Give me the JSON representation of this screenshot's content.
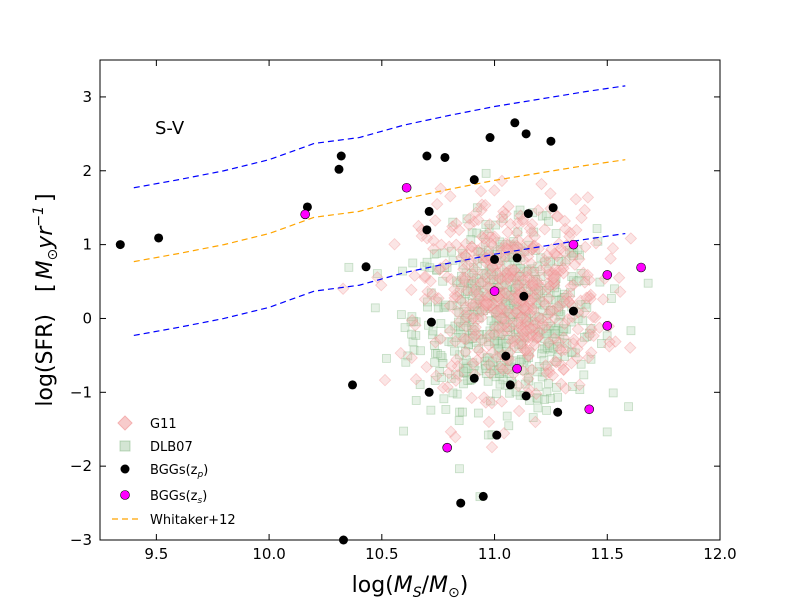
{
  "chart_data": {
    "type": "scatter",
    "panel_label": "S-V",
    "xlabel": {
      "prefix": "log(",
      "M": "M",
      "sub_s": "S",
      "slash": "/",
      "M2": "M",
      "sub_sun": "⊙",
      "suffix": ")"
    },
    "ylabel": {
      "text": "log(SFR)",
      "unit_open": "[",
      "M": "M",
      "sub_sun": "⊙",
      "yr": "yr",
      "exp": "−1",
      "unit_close": "]"
    },
    "xlim": [
      9.25,
      12.0
    ],
    "ylim": [
      -3,
      3.5
    ],
    "xticks": [
      9.5,
      10.0,
      10.5,
      11.0,
      11.5,
      12.0
    ],
    "xtick_labels": [
      "9.5",
      "10.0",
      "10.5",
      "11.0",
      "11.5",
      "12.0"
    ],
    "yticks": [
      -3,
      -2,
      -1,
      0,
      1,
      2,
      3
    ],
    "ytick_labels": [
      "−3",
      "−2",
      "−1",
      "0",
      "1",
      "2",
      "3"
    ],
    "legend": [
      {
        "label": "G11",
        "marker": "diamond",
        "color": "#f4b5b5"
      },
      {
        "label": "DLB07",
        "marker": "square",
        "color": "#c8dfc8"
      },
      {
        "label": "BGGs(z",
        "sub": "p",
        "close": ")",
        "marker": "circle",
        "color": "#000000"
      },
      {
        "label": "BGGs(z",
        "sub": "s",
        "close": ")",
        "marker": "circle",
        "color": "#ff00ff"
      },
      {
        "label": "Whitaker+12",
        "marker": "dashed-line",
        "color": "#ffa500"
      }
    ],
    "colors": {
      "g11": "#f08080",
      "dlb07": "#6aa86a",
      "bgg_p": "#000000",
      "bgg_s": "#ff00ff",
      "whitaker": "#ffa500",
      "scatter_band": "#0000ff"
    },
    "series": [
      {
        "name": "Whitaker+12",
        "kind": "line",
        "color": "#ffa500",
        "x": [
          9.4,
          9.6,
          9.8,
          10.0,
          10.2,
          10.4,
          10.6,
          10.8,
          11.0,
          11.2,
          11.4,
          11.58
        ],
        "y": [
          0.77,
          0.88,
          1.0,
          1.15,
          1.37,
          1.45,
          1.62,
          1.75,
          1.87,
          1.97,
          2.07,
          2.15
        ]
      },
      {
        "name": "Whitaker+12 +1 dex",
        "kind": "line",
        "color": "#0000ff",
        "x": [
          9.4,
          9.6,
          9.8,
          10.0,
          10.2,
          10.4,
          10.6,
          10.8,
          11.0,
          11.2,
          11.4,
          11.58
        ],
        "y": [
          1.77,
          1.88,
          2.0,
          2.15,
          2.37,
          2.45,
          2.62,
          2.75,
          2.87,
          2.97,
          3.07,
          3.15
        ]
      },
      {
        "name": "Whitaker+12 -1 dex",
        "kind": "line",
        "color": "#0000ff",
        "x": [
          9.4,
          9.6,
          9.8,
          10.0,
          10.2,
          10.4,
          10.6,
          10.8,
          11.0,
          11.2,
          11.4,
          11.58
        ],
        "y": [
          -0.23,
          -0.12,
          0.0,
          0.15,
          0.37,
          0.45,
          0.62,
          0.75,
          0.87,
          0.97,
          1.07,
          1.15
        ]
      },
      {
        "name": "BGGs(zp)",
        "kind": "scatter",
        "color": "#000000",
        "x": [
          9.34,
          9.51,
          10.17,
          10.31,
          10.32,
          10.37,
          10.43,
          10.7,
          10.7,
          10.71,
          10.71,
          10.72,
          10.78,
          10.85,
          10.91,
          10.91,
          10.95,
          10.98,
          11.0,
          11.01,
          11.05,
          11.07,
          11.09,
          11.1,
          11.13,
          11.14,
          11.14,
          11.15,
          11.25,
          11.26,
          11.28,
          11.35,
          10.33
        ],
        "y": [
          1.0,
          1.09,
          1.51,
          2.02,
          2.2,
          -0.9,
          0.7,
          2.2,
          1.2,
          -1.0,
          1.45,
          -0.05,
          2.18,
          -2.5,
          -0.81,
          1.88,
          -2.41,
          2.45,
          0.8,
          -1.58,
          -0.51,
          -0.9,
          2.65,
          0.82,
          0.3,
          -1.05,
          2.5,
          1.42,
          2.4,
          1.5,
          -1.27,
          0.1,
          -3.0
        ]
      },
      {
        "name": "BGGs(zs)",
        "kind": "scatter",
        "color": "#ff00ff",
        "x": [
          10.16,
          10.61,
          10.79,
          11.0,
          11.1,
          11.35,
          11.42,
          11.5,
          11.5,
          11.65
        ],
        "y": [
          1.41,
          1.77,
          -1.75,
          0.37,
          -0.68,
          1.0,
          -1.23,
          0.59,
          -0.1,
          0.69
        ]
      },
      {
        "name": "G11",
        "kind": "cloud",
        "color": "#f08080",
        "n": 520,
        "mean_x": 11.08,
        "mean_y": 0.3,
        "std_x": 0.2,
        "std_y": 0.65
      },
      {
        "name": "DLB07",
        "kind": "cloud",
        "color": "#6aa86a",
        "n": 620,
        "mean_x": 11.05,
        "mean_y": 0.0,
        "std_x": 0.2,
        "std_y": 0.6
      }
    ]
  }
}
